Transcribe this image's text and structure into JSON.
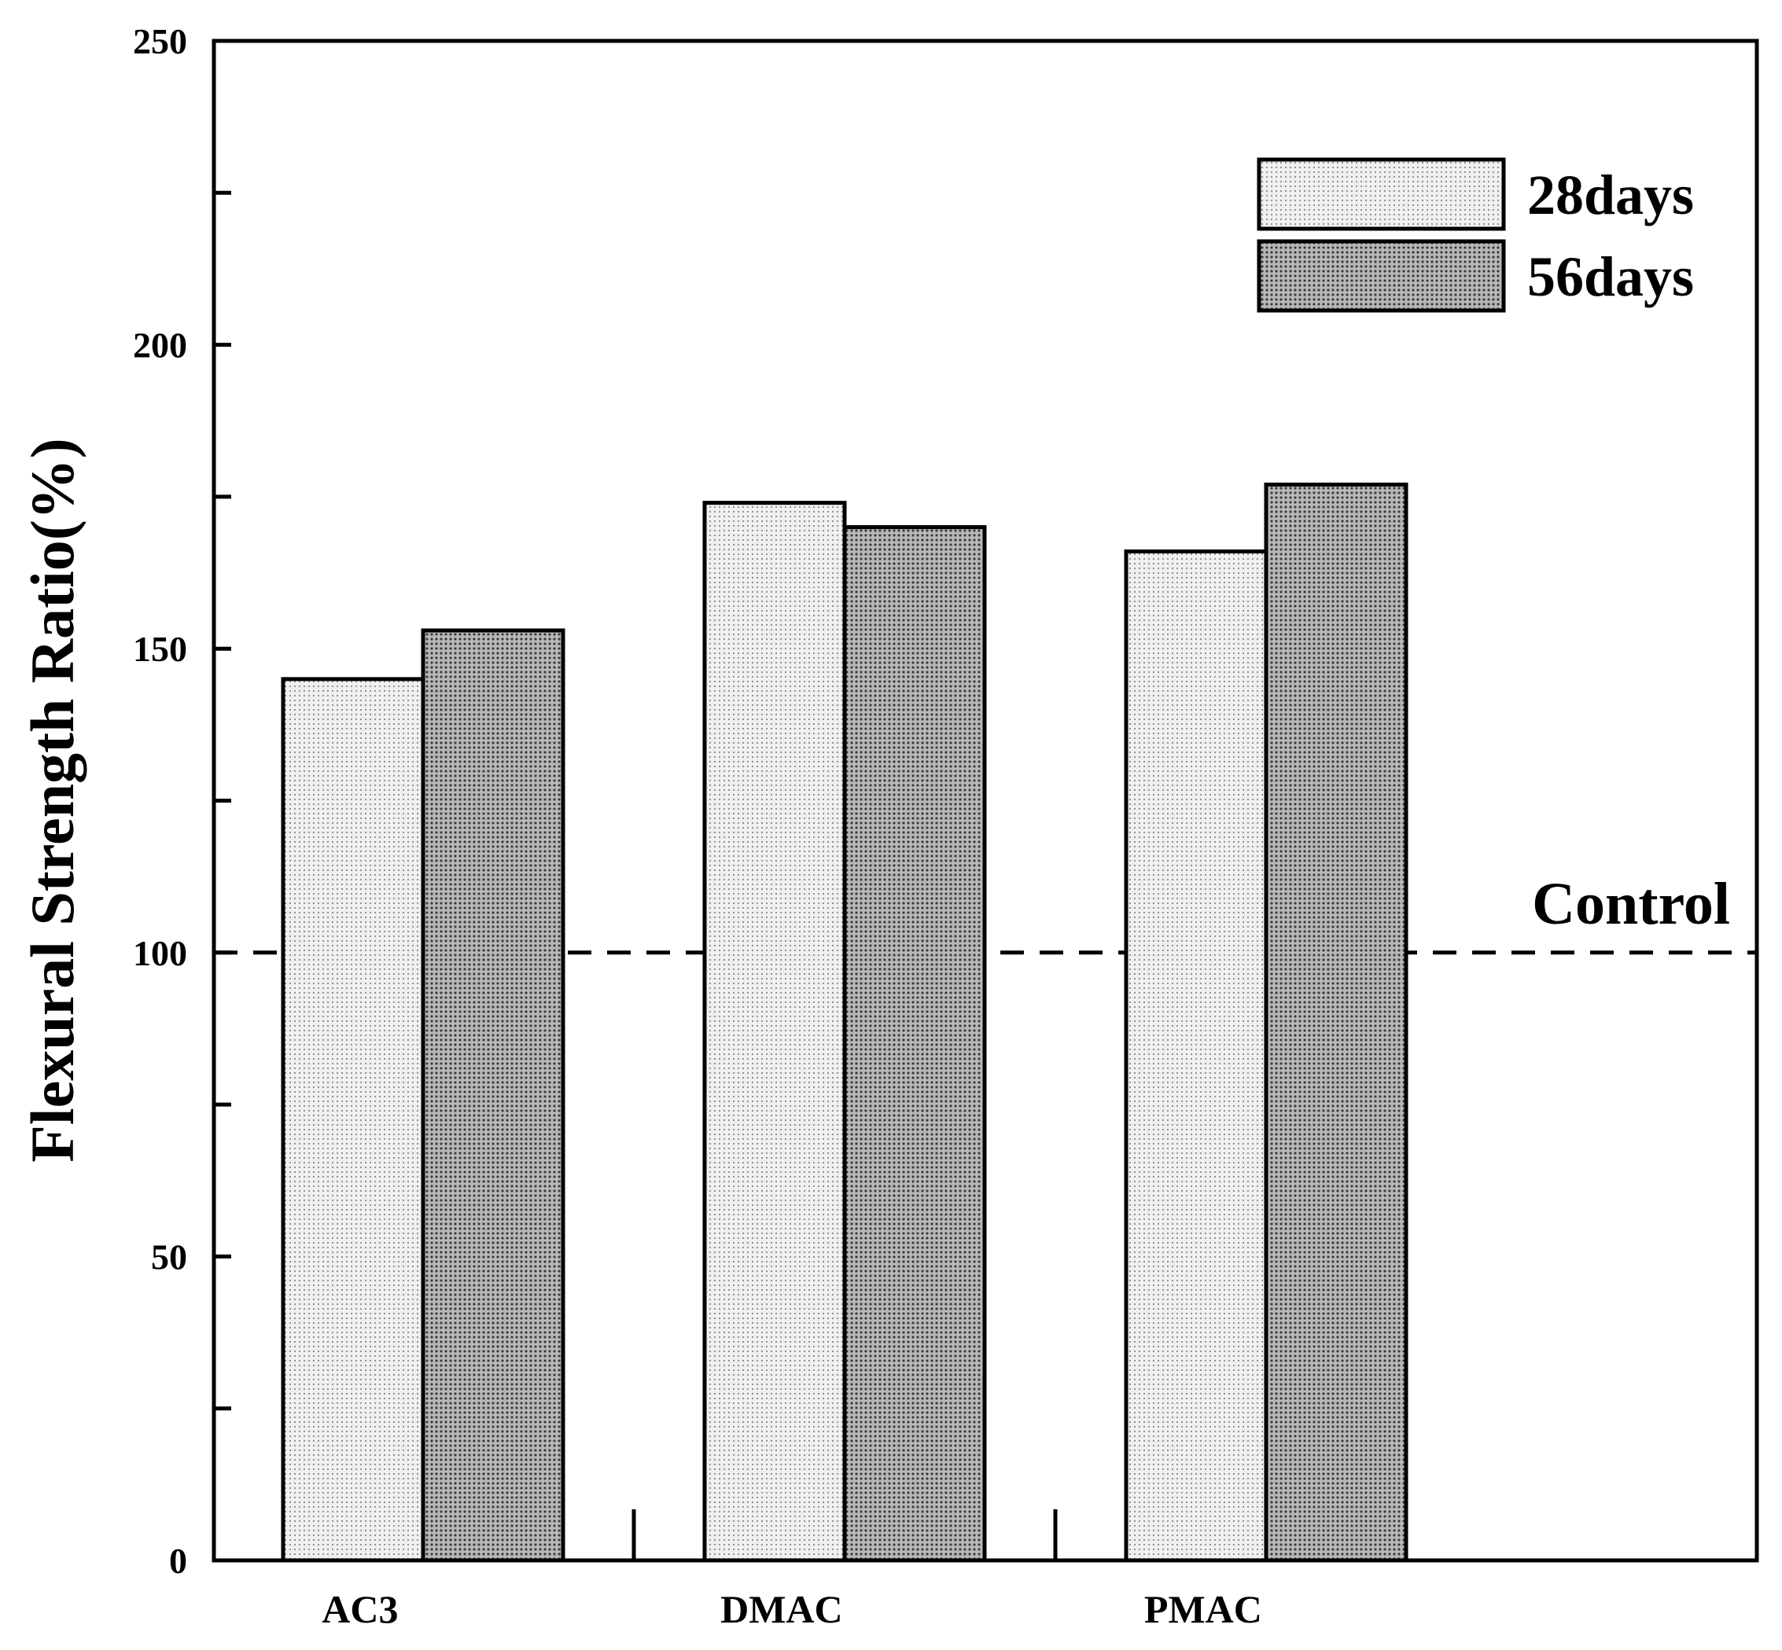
{
  "chart_data": {
    "type": "bar",
    "title": "",
    "xlabel": "",
    "ylabel": "Flexural Strength Ratio(%)",
    "categories": [
      "AC3",
      "DMAC",
      "PMAC"
    ],
    "series": [
      {
        "name": "28days",
        "values": [
          145,
          174,
          166
        ],
        "color": "#e6e6e6"
      },
      {
        "name": "56days",
        "values": [
          153,
          170,
          177
        ],
        "color": "#8c8c8c"
      }
    ],
    "ylim": [
      0,
      250
    ],
    "yticks": [
      0,
      50,
      100,
      150,
      200,
      250
    ],
    "reference_line": {
      "value": 100,
      "label": "Control",
      "style": "dashed"
    },
    "legend": {
      "position": "top-right"
    },
    "grid": false
  }
}
